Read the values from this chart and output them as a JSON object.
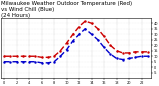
{
  "title": "Milwaukee Weather Outdoor Temperature (Red)\nvs Wind Chill (Blue)\n(24 Hours)",
  "hours": [
    0,
    1,
    2,
    3,
    4,
    5,
    6,
    7,
    8,
    9,
    10,
    11,
    12,
    13,
    14,
    15,
    16,
    17,
    18,
    19,
    20,
    21,
    22,
    23
  ],
  "temp": [
    10,
    10,
    10,
    10,
    10,
    10,
    9,
    9,
    10,
    15,
    22,
    30,
    37,
    42,
    40,
    35,
    28,
    20,
    15,
    13,
    13,
    14,
    14,
    14
  ],
  "windchill": [
    5,
    5,
    5,
    5,
    5,
    5,
    4,
    4,
    5,
    10,
    16,
    24,
    30,
    35,
    30,
    25,
    18,
    12,
    8,
    7,
    8,
    9,
    10,
    10
  ],
  "temp_color": "#cc0000",
  "wind_color": "#0000cc",
  "bg_color": "#ffffff",
  "ylim": [
    -10,
    45
  ],
  "ytick_vals": [
    40,
    35,
    30,
    25,
    20,
    15,
    10,
    5,
    0,
    -5
  ],
  "ytick_labels": [
    "40",
    "35",
    "30",
    "25",
    "20",
    "15",
    "10",
    "5",
    "0",
    "-5"
  ],
  "xtick_vals": [
    0,
    2,
    4,
    6,
    8,
    10,
    12,
    14,
    16,
    18,
    20,
    22
  ],
  "grid_color": "#999999",
  "title_fontsize": 4.0,
  "line_width": 1.0
}
